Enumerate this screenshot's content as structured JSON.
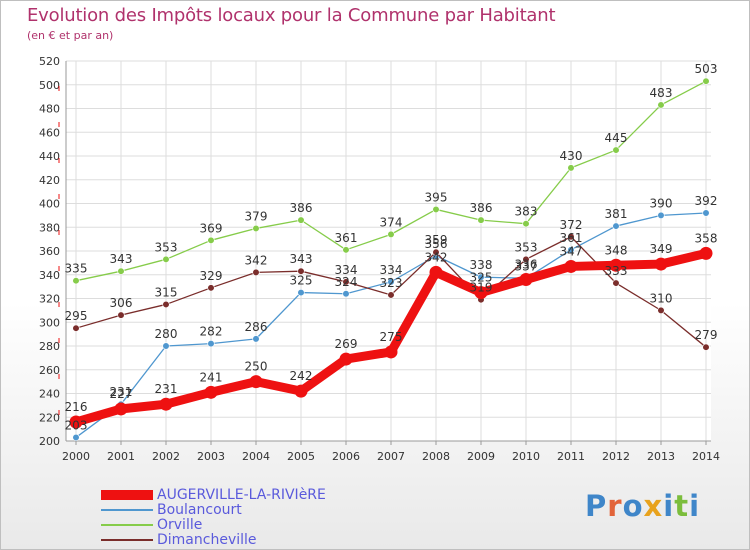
{
  "header": {
    "title": "Evolution des Impôts locaux pour la Commune par Habitant",
    "subtitle": "(en € et par an)"
  },
  "logo": {
    "text": "Proxiti",
    "letter_colors": [
      "#3f86c9",
      "#e2643a",
      "#3f86c9",
      "#e8a21d",
      "#3f86c9",
      "#7bbd3c",
      "#3f86c9"
    ]
  },
  "colors": {
    "title": "#b0326c",
    "axis_text": "#333333",
    "grid": "#dddddd",
    "legend_text": "#5a5adc"
  },
  "chart_data": {
    "type": "line",
    "x": [
      2000,
      2001,
      2002,
      2003,
      2004,
      2005,
      2006,
      2007,
      2008,
      2009,
      2010,
      2011,
      2012,
      2013,
      2014
    ],
    "ylim": [
      200,
      520
    ],
    "yticks": [
      200,
      220,
      240,
      260,
      280,
      300,
      320,
      340,
      360,
      380,
      400,
      420,
      440,
      460,
      480,
      500,
      520
    ],
    "grid": true,
    "legend_position": "bottom-left",
    "series": [
      {
        "name": "Orville",
        "color": "#86cc4a",
        "values": [
          335,
          343,
          353,
          369,
          379,
          386,
          361,
          374,
          395,
          386,
          383,
          430,
          445,
          483,
          503
        ],
        "labels": [
          "335",
          "343",
          "353",
          "369",
          "379",
          "386",
          "361",
          "374",
          "395",
          "386",
          "383",
          "430",
          "445",
          "483",
          "503"
        ]
      },
      {
        "name": "Boulancourt",
        "color": "#4f97cf",
        "values": [
          203,
          231,
          280,
          282,
          286,
          325,
          324,
          334,
          356,
          338,
          337,
          361,
          381,
          390,
          392
        ],
        "labels": [
          "203",
          "231",
          "280",
          "282",
          "286",
          "325",
          "324",
          "334",
          "356",
          "338",
          "337",
          "361",
          "381",
          "390",
          "392"
        ]
      },
      {
        "name": "Dimancheville",
        "color": "#7a2d2b",
        "values": [
          295,
          306,
          315,
          329,
          342,
          343,
          334,
          323,
          359,
          319,
          353,
          372,
          333,
          310,
          279
        ],
        "labels": [
          "295",
          "306",
          "315",
          "329",
          "342",
          "343",
          "334",
          "323",
          "359",
          "319",
          "353",
          "372",
          "333",
          "310",
          "279"
        ]
      },
      {
        "name": "AUGERVILLE-LA-RIVIèRE",
        "color": "#ee1111",
        "values": [
          216,
          227,
          231,
          241,
          250,
          242,
          269,
          275,
          342,
          325,
          336,
          347,
          348,
          349,
          358
        ],
        "labels": [
          "216",
          "227",
          "231",
          "241",
          "250",
          "242",
          "269",
          "275",
          "342",
          "325",
          "336",
          "347",
          "348",
          "349",
          "358"
        ]
      }
    ],
    "legend": [
      "AUGERVILLE-LA-RIVIèRE",
      "Boulancourt",
      "Orville",
      "Dimancheville"
    ]
  }
}
